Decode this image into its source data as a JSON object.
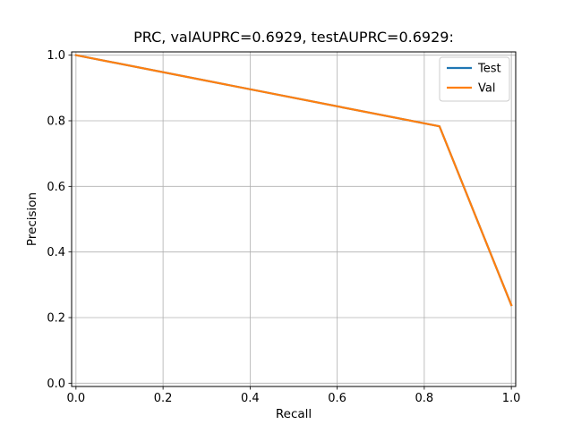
{
  "chart_data": {
    "type": "line",
    "title": "PRC, valAUPRC=0.6929, testAUPRC=0.6929:",
    "xlabel": "Recall",
    "ylabel": "Precision",
    "xlim": [
      -0.01,
      1.01
    ],
    "ylim": [
      -0.01,
      1.01
    ],
    "grid": true,
    "legend_position": "top-right",
    "xticks": [
      0.0,
      0.2,
      0.4,
      0.6,
      0.8,
      1.0
    ],
    "xtick_labels": [
      "0.0",
      "0.2",
      "0.4",
      "0.6",
      "0.8",
      "1.0"
    ],
    "yticks": [
      0.0,
      0.2,
      0.4,
      0.6,
      0.8,
      1.0
    ],
    "ytick_labels": [
      "0.0",
      "0.2",
      "0.4",
      "0.6",
      "0.8",
      "1.0"
    ],
    "series": [
      {
        "name": "Test",
        "color": "#1f77b4",
        "x": [
          0.0,
          0.835,
          1.0
        ],
        "y": [
          1.0,
          0.783,
          0.238
        ]
      },
      {
        "name": "Val",
        "color": "#ff7f0e",
        "x": [
          0.0,
          0.835,
          1.0
        ],
        "y": [
          1.0,
          0.783,
          0.238
        ]
      }
    ]
  }
}
